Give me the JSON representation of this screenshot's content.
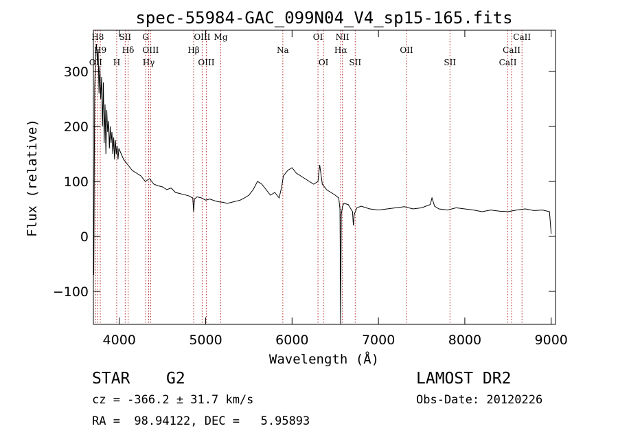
{
  "chart_data": {
    "type": "line",
    "title": "spec-55984-GAC_099N04_V4_sp15-165.fits",
    "xlabel": "Wavelength (Å)",
    "ylabel": "Flux (relative)",
    "xlim": [
      3700,
      9050
    ],
    "ylim": [
      -160,
      375
    ],
    "xticks": [
      4000,
      5000,
      6000,
      7000,
      8000,
      9000
    ],
    "yticks": [
      -100,
      0,
      100,
      200,
      300
    ],
    "grid": false,
    "line_color": "#000000",
    "marker_color": "#b22222",
    "series": [
      {
        "x": [
          3705,
          3715,
          3725,
          3735,
          3745,
          3755,
          3765,
          3775,
          3785,
          3795,
          3805,
          3815,
          3825,
          3835,
          3845,
          3855,
          3865,
          3875,
          3885,
          3895,
          3905,
          3915,
          3925,
          3935,
          3945,
          3955,
          3965,
          3975,
          3985,
          3995,
          4050,
          4100,
          4150,
          4200,
          4250,
          4300,
          4350,
          4400,
          4450,
          4500,
          4550,
          4600,
          4650,
          4700,
          4750,
          4800,
          4850,
          4861,
          4870,
          4900,
          4950,
          5000,
          5050,
          5100,
          5150,
          5200,
          5250,
          5300,
          5350,
          5400,
          5450,
          5500,
          5550,
          5600,
          5650,
          5700,
          5750,
          5800,
          5850,
          5880,
          5900,
          5950,
          6000,
          6050,
          6100,
          6150,
          6200,
          6250,
          6300,
          6320,
          6350,
          6400,
          6450,
          6500,
          6540,
          6555,
          6563,
          6570,
          6585,
          6600,
          6650,
          6700,
          6710,
          6720,
          6750,
          6800,
          6900,
          7000,
          7100,
          7200,
          7300,
          7400,
          7500,
          7600,
          7620,
          7650,
          7700,
          7800,
          7900,
          8000,
          8100,
          8200,
          8300,
          8400,
          8500,
          8600,
          8700,
          8800,
          8900,
          8980,
          9000
        ],
        "y": [
          -70,
          270,
          330,
          350,
          320,
          340,
          260,
          310,
          250,
          290,
          200,
          280,
          170,
          240,
          150,
          230,
          190,
          210,
          160,
          200,
          170,
          190,
          150,
          180,
          140,
          175,
          150,
          165,
          140,
          160,
          140,
          130,
          120,
          115,
          110,
          100,
          105,
          95,
          92,
          90,
          85,
          88,
          80,
          78,
          76,
          74,
          70,
          45,
          68,
          72,
          70,
          66,
          68,
          65,
          63,
          62,
          60,
          62,
          64,
          66,
          70,
          75,
          85,
          100,
          95,
          85,
          75,
          80,
          70,
          90,
          110,
          120,
          125,
          115,
          110,
          105,
          100,
          95,
          100,
          130,
          95,
          85,
          80,
          75,
          70,
          50,
          -160,
          40,
          55,
          60,
          58,
          45,
          20,
          40,
          52,
          55,
          50,
          48,
          50,
          52,
          54,
          50,
          52,
          58,
          70,
          55,
          50,
          48,
          52,
          50,
          48,
          45,
          48,
          46,
          45,
          48,
          50,
          47,
          48,
          45,
          5
        ]
      }
    ],
    "annotations": [
      {
        "label": "H8",
        "x": 3750
      },
      {
        "label": "H9",
        "x": 3780
      },
      {
        "label": "H",
        "x": 3970
      },
      {
        "label": "SII",
        "x": 4068
      },
      {
        "label": "Hδ",
        "x": 4102
      },
      {
        "label": "Hγ",
        "x": 4340
      },
      {
        "label": "G",
        "x": 4305
      },
      {
        "label": "OIII",
        "x": 4363
      },
      {
        "label": "OII",
        "x": 3727
      },
      {
        "label": "OIII",
        "x": 4959
      },
      {
        "label": "Hβ",
        "x": 4861
      },
      {
        "label": "OIII",
        "x": 5007
      },
      {
        "label": "Mg",
        "x": 5175
      },
      {
        "label": "Na",
        "x": 5893
      },
      {
        "label": "OI",
        "x": 6364
      },
      {
        "label": "OI",
        "x": 6300
      },
      {
        "label": "Hα",
        "x": 6563
      },
      {
        "label": "SII",
        "x": 6731
      },
      {
        "label": "NII",
        "x": 6583
      },
      {
        "label": "OII",
        "x": 7325
      },
      {
        "label": "SII",
        "x": 7828
      },
      {
        "label": "CaII",
        "x": 8662
      },
      {
        "label": "CaII",
        "x": 8542
      },
      {
        "label": "CaII",
        "x": 8498
      }
    ]
  },
  "info": {
    "object_class": "STAR",
    "subclass": "G2",
    "survey": "LAMOST DR2",
    "redshift": "cz = -366.2 ± 31.7 km/s",
    "obs_date": "Obs-Date: 20120226",
    "coords": "RA =  98.94122, DEC =   5.95893"
  }
}
